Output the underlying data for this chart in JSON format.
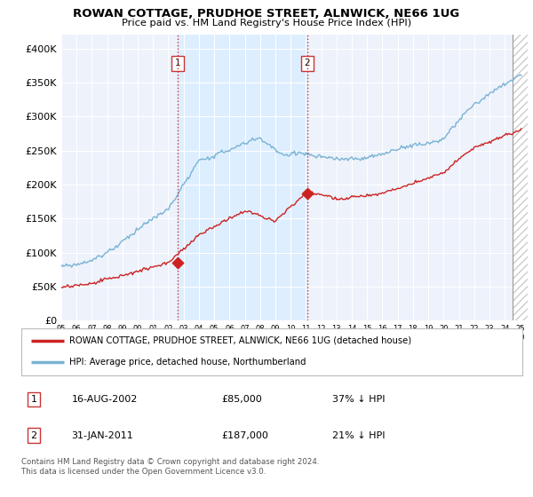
{
  "title": "ROWAN COTTAGE, PRUDHOE STREET, ALNWICK, NE66 1UG",
  "subtitle": "Price paid vs. HM Land Registry's House Price Index (HPI)",
  "ylim": [
    0,
    420000
  ],
  "yticks": [
    0,
    50000,
    100000,
    150000,
    200000,
    250000,
    300000,
    350000,
    400000
  ],
  "ytick_labels": [
    "£0",
    "£50K",
    "£100K",
    "£150K",
    "£200K",
    "£250K",
    "£300K",
    "£350K",
    "£400K"
  ],
  "sale1_year": 2002.625,
  "sale1_price": 85000,
  "sale2_year": 2011.083,
  "sale2_price": 187000,
  "hpi_color": "#7ab3d4",
  "price_color": "#cc2222",
  "vline_color": "#cc3333",
  "shade_color": "#ddeeff",
  "hatch_color": "#cccccc",
  "legend_label_price": "ROWAN COTTAGE, PRUDHOE STREET, ALNWICK, NE66 1UG (detached house)",
  "legend_label_hpi": "HPI: Average price, detached house, Northumberland",
  "table_row1": [
    "1",
    "16-AUG-2002",
    "£85,000",
    "37% ↓ HPI"
  ],
  "table_row2": [
    "2",
    "31-JAN-2011",
    "£187,000",
    "21% ↓ HPI"
  ],
  "footer": "Contains HM Land Registry data © Crown copyright and database right 2024.\nThis data is licensed under the Open Government Licence v3.0.",
  "background_color": "#edf2fb",
  "xmin": 1995,
  "xmax": 2025.5,
  "hatch_start": 2024.5
}
